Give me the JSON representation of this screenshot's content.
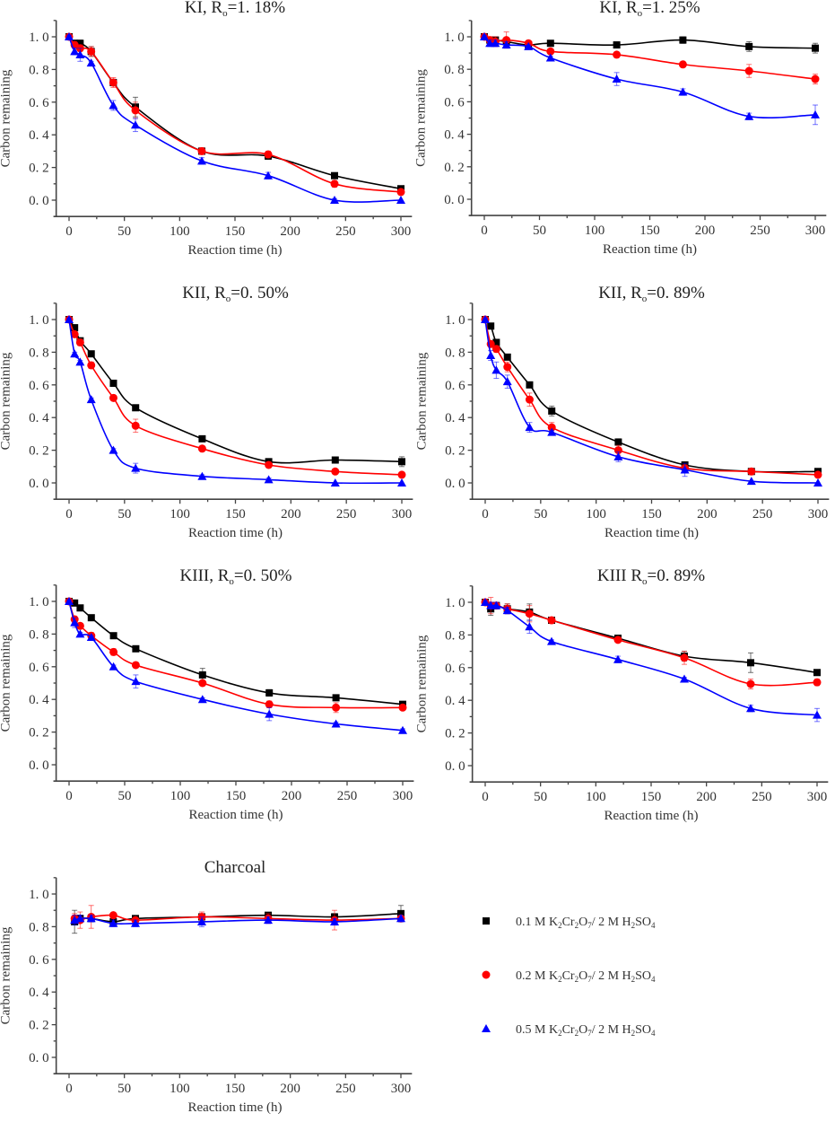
{
  "figure": {
    "legend": {
      "entries": [
        {
          "series": "s1",
          "label": "0.1 M K2Cr2O7/2 M H2SO4",
          "parts": [
            "0.1  M K",
            "2",
            "Cr",
            "2",
            "O",
            "7",
            "/ 2  M H",
            "2",
            "SO",
            "4"
          ],
          "marker": "square",
          "color": "#000000"
        },
        {
          "series": "s2",
          "label": "0.2 M K2Cr2O7/2 M H2SO4",
          "parts": [
            "0.2  M K",
            "2",
            "Cr",
            "2",
            "O",
            "7",
            "/ 2  M H",
            "2",
            "SO",
            "4"
          ],
          "marker": "circle",
          "color": "#ff0000"
        },
        {
          "series": "s3",
          "label": "0.5 M K2Cr2O7/2 M H2SO4",
          "parts": [
            "0.5  M K",
            "2",
            "Cr",
            "2",
            "O",
            "7",
            "/ 2  M H",
            "2",
            "SO",
            "4"
          ],
          "marker": "triangle",
          "color": "#0000ff"
        }
      ]
    }
  },
  "chart_data": [
    {
      "type": "scatter",
      "title": "KI, Ro=1. 18%",
      "title_parts": [
        "KI, R",
        "o",
        "=1. 18%"
      ],
      "xlabel": "Reaction time (h)",
      "ylabel": "Carbon remaining",
      "xlim": [
        -10,
        310
      ],
      "ylim": [
        -0.1,
        1.1
      ],
      "xticks": [
        0,
        50,
        100,
        150,
        200,
        250,
        300
      ],
      "xtick_labels": [
        "0",
        "50",
        "100",
        "150",
        "200",
        "250",
        "300"
      ],
      "yticks": [
        0.0,
        0.2,
        0.4,
        0.6,
        0.8,
        1.0
      ],
      "ytick_labels": [
        "0. 0",
        "0. 2",
        "0. 4",
        "0. 6",
        "0. 8",
        "1. 0"
      ],
      "grid": false,
      "x": [
        0,
        5,
        10,
        20,
        40,
        60,
        120,
        180,
        240,
        300
      ],
      "series": [
        {
          "name": "0.1 M K2Cr2O7/2 M H2SO4",
          "marker": "square",
          "color": "#000000",
          "values": [
            1.0,
            0.96,
            0.96,
            0.91,
            0.72,
            0.57,
            0.3,
            0.27,
            0.15,
            0.07
          ],
          "errors": [
            0.01,
            0.02,
            0.02,
            0.03,
            0.02,
            0.06,
            0.02,
            0.02,
            0.01,
            0.01
          ]
        },
        {
          "name": "0.2 M K2Cr2O7/2 M H2SO4",
          "marker": "circle",
          "color": "#ff0000",
          "values": [
            1.0,
            0.95,
            0.93,
            0.91,
            0.72,
            0.55,
            0.3,
            0.28,
            0.1,
            0.05
          ],
          "errors": [
            0.01,
            0.02,
            0.02,
            0.03,
            0.03,
            0.05,
            0.02,
            0.02,
            0.02,
            0.01
          ]
        },
        {
          "name": "0.5 M K2Cr2O7/2 M H2SO4",
          "marker": "triangle",
          "color": "#0000ff",
          "values": [
            1.0,
            0.91,
            0.89,
            0.84,
            0.58,
            0.46,
            0.24,
            0.15,
            0.0,
            0.0
          ],
          "errors": [
            0.01,
            0.02,
            0.04,
            0.01,
            0.03,
            0.04,
            0.02,
            0.02,
            0.01,
            0.0
          ]
        }
      ]
    },
    {
      "type": "scatter",
      "title": "KI, Ro=1. 25%",
      "title_parts": [
        "KI, R",
        "o",
        "=1. 25%"
      ],
      "xlabel": "Reaction time (h)",
      "ylabel": "Carbon remaining",
      "xlim": [
        -10,
        310
      ],
      "ylim": [
        -0.1,
        1.1
      ],
      "xticks": [
        0,
        50,
        100,
        150,
        200,
        250,
        300
      ],
      "xtick_labels": [
        "0",
        "50",
        "100",
        "150",
        "200",
        "250",
        "300"
      ],
      "yticks": [
        0.0,
        0.2,
        0.4,
        0.6,
        0.8,
        1.0
      ],
      "ytick_labels": [
        "0. 0",
        "0. 2",
        "0. 4",
        "0. 6",
        "0. 8",
        "1. 0"
      ],
      "grid": false,
      "x": [
        0,
        5,
        10,
        20,
        40,
        60,
        120,
        180,
        240,
        300
      ],
      "series": [
        {
          "name": "0.1 M K2Cr2O7/2 M H2SO4",
          "marker": "square",
          "color": "#000000",
          "values": [
            1.0,
            0.98,
            0.98,
            0.97,
            0.95,
            0.96,
            0.95,
            0.98,
            0.94,
            0.93
          ],
          "errors": [
            0.01,
            0.02,
            0.02,
            0.02,
            0.01,
            0.01,
            0.01,
            0.02,
            0.03,
            0.03
          ]
        },
        {
          "name": "0.2 M K2Cr2O7/2 M H2SO4",
          "marker": "circle",
          "color": "#ff0000",
          "values": [
            1.0,
            0.98,
            0.97,
            0.98,
            0.96,
            0.91,
            0.89,
            0.83,
            0.79,
            0.74
          ],
          "errors": [
            0.01,
            0.02,
            0.03,
            0.05,
            0.01,
            0.01,
            0.01,
            0.01,
            0.04,
            0.03
          ]
        },
        {
          "name": "0.5 M K2Cr2O7/2 M H2SO4",
          "marker": "triangle",
          "color": "#0000ff",
          "values": [
            1.0,
            0.96,
            0.96,
            0.95,
            0.94,
            0.87,
            0.74,
            0.66,
            0.51,
            0.52
          ],
          "errors": [
            0.01,
            0.02,
            0.02,
            0.02,
            0.01,
            0.01,
            0.04,
            0.02,
            0.02,
            0.06
          ]
        }
      ]
    },
    {
      "type": "scatter",
      "title": "KII, Ro=0. 50%",
      "title_parts": [
        "KII, R",
        "o",
        "=0. 50%"
      ],
      "xlabel": "Reaction time (h)",
      "ylabel": "Carbon remaining",
      "xlim": [
        -10,
        310
      ],
      "ylim": [
        -0.1,
        1.1
      ],
      "xticks": [
        0,
        50,
        100,
        150,
        200,
        250,
        300
      ],
      "xtick_labels": [
        "0",
        "50",
        "100",
        "150",
        "200",
        "250",
        "300"
      ],
      "yticks": [
        0.0,
        0.2,
        0.4,
        0.6,
        0.8,
        1.0
      ],
      "ytick_labels": [
        "0. 0",
        "0. 2",
        "0. 4",
        "0. 6",
        "0. 8",
        "1. 0"
      ],
      "grid": false,
      "x": [
        0,
        5,
        10,
        20,
        40,
        60,
        120,
        180,
        240,
        300
      ],
      "series": [
        {
          "name": "0.1 M K2Cr2O7/2 M H2SO4",
          "marker": "square",
          "color": "#000000",
          "values": [
            1.0,
            0.95,
            0.87,
            0.79,
            0.61,
            0.46,
            0.27,
            0.13,
            0.14,
            0.13
          ],
          "errors": [
            0.01,
            0.01,
            0.01,
            0.01,
            0.01,
            0.01,
            0.01,
            0.01,
            0.01,
            0.03
          ]
        },
        {
          "name": "0.2 M K2Cr2O7/2 M H2SO4",
          "marker": "circle",
          "color": "#ff0000",
          "values": [
            1.0,
            0.91,
            0.86,
            0.72,
            0.52,
            0.35,
            0.21,
            0.11,
            0.07,
            0.05
          ],
          "errors": [
            0.01,
            0.01,
            0.02,
            0.02,
            0.01,
            0.04,
            0.01,
            0.01,
            0.01,
            0.01
          ]
        },
        {
          "name": "0.5 M K2Cr2O7/2 M H2SO4",
          "marker": "triangle",
          "color": "#0000ff",
          "values": [
            1.0,
            0.79,
            0.74,
            0.51,
            0.2,
            0.09,
            0.04,
            0.02,
            0.0,
            0.0
          ],
          "errors": [
            0.01,
            0.01,
            0.01,
            0.01,
            0.01,
            0.03,
            0.01,
            0.01,
            0.0,
            0.0
          ]
        }
      ]
    },
    {
      "type": "scatter",
      "title": "KII, Ro=0. 89%",
      "title_parts": [
        "KII, R",
        "o",
        "=0. 89%"
      ],
      "xlabel": "Reaction time (h)",
      "ylabel": "Carbon remaining",
      "xlim": [
        -10,
        310
      ],
      "ylim": [
        -0.1,
        1.1
      ],
      "xticks": [
        0,
        50,
        100,
        150,
        200,
        250,
        300
      ],
      "xtick_labels": [
        "0",
        "50",
        "100",
        "150",
        "200",
        "250",
        "300"
      ],
      "yticks": [
        0.0,
        0.2,
        0.4,
        0.6,
        0.8,
        1.0
      ],
      "ytick_labels": [
        "0. 0",
        "0. 2",
        "0. 4",
        "0. 6",
        "0. 8",
        "1. 0"
      ],
      "grid": false,
      "x": [
        0,
        5,
        10,
        20,
        40,
        60,
        120,
        180,
        240,
        300
      ],
      "series": [
        {
          "name": "0.1 M K2Cr2O7/2 M H2SO4",
          "marker": "square",
          "color": "#000000",
          "values": [
            1.0,
            0.96,
            0.86,
            0.77,
            0.6,
            0.44,
            0.25,
            0.11,
            0.07,
            0.07
          ],
          "errors": [
            0.01,
            0.01,
            0.01,
            0.01,
            0.01,
            0.03,
            0.02,
            0.01,
            0.01,
            0.01
          ]
        },
        {
          "name": "0.2 M K2Cr2O7/2 M H2SO4",
          "marker": "circle",
          "color": "#ff0000",
          "values": [
            1.0,
            0.85,
            0.82,
            0.71,
            0.51,
            0.34,
            0.2,
            0.09,
            0.07,
            0.05
          ],
          "errors": [
            0.01,
            0.02,
            0.02,
            0.03,
            0.04,
            0.03,
            0.03,
            0.02,
            0.01,
            0.01
          ]
        },
        {
          "name": "0.5 M K2Cr2O7/2 M H2SO4",
          "marker": "triangle",
          "color": "#0000ff",
          "values": [
            1.0,
            0.78,
            0.69,
            0.62,
            0.34,
            0.31,
            0.16,
            0.08,
            0.01,
            0.0
          ],
          "errors": [
            0.01,
            0.03,
            0.05,
            0.04,
            0.03,
            0.01,
            0.03,
            0.04,
            0.0,
            0.0
          ]
        }
      ]
    },
    {
      "type": "scatter",
      "title": "KIII, Ro=0. 50%",
      "title_parts": [
        "KIII, R",
        "o",
        "=0. 50%"
      ],
      "xlabel": "Reaction time (h)",
      "ylabel": "Carbon remaining",
      "xlim": [
        -10,
        310
      ],
      "ylim": [
        -0.1,
        1.1
      ],
      "xticks": [
        0,
        50,
        100,
        150,
        200,
        250,
        300
      ],
      "xtick_labels": [
        "0",
        "50",
        "100",
        "150",
        "200",
        "250",
        "300"
      ],
      "yticks": [
        0.0,
        0.2,
        0.4,
        0.6,
        0.8,
        1.0
      ],
      "ytick_labels": [
        "0. 0",
        "0. 2",
        "0. 4",
        "0. 6",
        "0. 8",
        "1. 0"
      ],
      "grid": false,
      "x": [
        0,
        5,
        10,
        20,
        40,
        60,
        120,
        180,
        240,
        300
      ],
      "series": [
        {
          "name": "0.1 M K2Cr2O7/2 M H2SO4",
          "marker": "square",
          "color": "#000000",
          "values": [
            1.0,
            0.99,
            0.96,
            0.9,
            0.79,
            0.71,
            0.55,
            0.44,
            0.41,
            0.37
          ],
          "errors": [
            0.01,
            0.01,
            0.01,
            0.01,
            0.01,
            0.01,
            0.04,
            0.02,
            0.01,
            0.01
          ]
        },
        {
          "name": "0.2 M K2Cr2O7/2 M H2SO4",
          "marker": "circle",
          "color": "#ff0000",
          "values": [
            1.0,
            0.89,
            0.85,
            0.79,
            0.69,
            0.61,
            0.5,
            0.37,
            0.35,
            0.35
          ],
          "errors": [
            0.01,
            0.02,
            0.01,
            0.02,
            0.02,
            0.01,
            0.01,
            0.02,
            0.03,
            0.01
          ]
        },
        {
          "name": "0.5 M K2Cr2O7/2 M H2SO4",
          "marker": "triangle",
          "color": "#0000ff",
          "values": [
            1.0,
            0.87,
            0.8,
            0.78,
            0.6,
            0.51,
            0.4,
            0.31,
            0.25,
            0.21
          ],
          "errors": [
            0.01,
            0.03,
            0.01,
            0.01,
            0.01,
            0.04,
            0.01,
            0.04,
            0.01,
            0.01
          ]
        }
      ]
    },
    {
      "type": "scatter",
      "title": "KIII Ro=0. 89%",
      "title_parts": [
        "KIII R",
        "o",
        "=0. 89%"
      ],
      "xlabel": "Reaction time (h)",
      "ylabel": "Carbon remaining",
      "xlim": [
        -10,
        310
      ],
      "ylim": [
        -0.1,
        1.1
      ],
      "xticks": [
        0,
        50,
        100,
        150,
        200,
        250,
        300
      ],
      "xtick_labels": [
        "0",
        "50",
        "100",
        "150",
        "200",
        "250",
        "300"
      ],
      "yticks": [
        0.0,
        0.2,
        0.4,
        0.6,
        0.8,
        1.0
      ],
      "ytick_labels": [
        "0. 0",
        "0. 2",
        "0. 4",
        "0. 6",
        "0. 8",
        "1. 0"
      ],
      "grid": false,
      "x": [
        0,
        5,
        10,
        20,
        40,
        60,
        120,
        180,
        240,
        300
      ],
      "series": [
        {
          "name": "0.1 M K2Cr2O7/2 M H2SO4",
          "marker": "square",
          "color": "#000000",
          "values": [
            1.0,
            0.96,
            0.98,
            0.96,
            0.94,
            0.89,
            0.78,
            0.67,
            0.63,
            0.57
          ],
          "errors": [
            0.01,
            0.04,
            0.02,
            0.03,
            0.05,
            0.01,
            0.01,
            0.03,
            0.06,
            0.01
          ]
        },
        {
          "name": "0.2 M K2Cr2O7/2 M H2SO4",
          "marker": "circle",
          "color": "#ff0000",
          "values": [
            1.0,
            0.98,
            0.98,
            0.96,
            0.93,
            0.89,
            0.77,
            0.66,
            0.5,
            0.51
          ],
          "errors": [
            0.01,
            0.05,
            0.02,
            0.03,
            0.05,
            0.01,
            0.01,
            0.04,
            0.03,
            0.02
          ]
        },
        {
          "name": "0.5 M K2Cr2O7/2 M H2SO4",
          "marker": "triangle",
          "color": "#0000ff",
          "values": [
            1.0,
            0.98,
            0.98,
            0.95,
            0.85,
            0.76,
            0.65,
            0.53,
            0.35,
            0.31
          ],
          "errors": [
            0.01,
            0.02,
            0.02,
            0.02,
            0.04,
            0.01,
            0.02,
            0.01,
            0.02,
            0.04
          ]
        }
      ]
    },
    {
      "type": "scatter",
      "title": "Charcoal",
      "title_parts": [
        "Charcoal",
        "",
        ""
      ],
      "xlabel": "Reaction time (h)",
      "ylabel": "Carbon remaining",
      "xlim": [
        -10,
        310
      ],
      "ylim": [
        -0.1,
        1.1
      ],
      "xticks": [
        0,
        50,
        100,
        150,
        200,
        250,
        300
      ],
      "xtick_labels": [
        "0",
        "50",
        "100",
        "150",
        "200",
        "250",
        "300"
      ],
      "yticks": [
        0.0,
        0.2,
        0.4,
        0.6,
        0.8,
        1.0
      ],
      "ytick_labels": [
        "0. 0",
        "0. 2",
        "0. 4",
        "0. 6",
        "0. 8",
        "1. 0"
      ],
      "grid": false,
      "x": [
        5,
        10,
        20,
        40,
        60,
        120,
        180,
        240,
        300
      ],
      "series": [
        {
          "name": "0.1 M K2Cr2O7/2 M H2SO4",
          "marker": "square",
          "color": "#000000",
          "values": [
            0.83,
            0.85,
            0.85,
            0.83,
            0.85,
            0.86,
            0.87,
            0.86,
            0.88
          ],
          "errors": [
            0.07,
            0.02,
            0.02,
            0.02,
            0.01,
            0.02,
            0.01,
            0.02,
            0.05
          ]
        },
        {
          "name": "0.2 M K2Cr2O7/2 M H2SO4",
          "marker": "circle",
          "color": "#ff0000",
          "values": [
            0.85,
            0.84,
            0.86,
            0.87,
            0.84,
            0.86,
            0.85,
            0.84,
            0.85
          ],
          "errors": [
            0.03,
            0.05,
            0.07,
            0.01,
            0.01,
            0.03,
            0.03,
            0.06,
            0.02
          ]
        },
        {
          "name": "0.5 M K2Cr2O7/2 M H2SO4",
          "marker": "triangle",
          "color": "#0000ff",
          "values": [
            0.84,
            0.85,
            0.85,
            0.82,
            0.82,
            0.83,
            0.84,
            0.83,
            0.85
          ],
          "errors": [
            0.03,
            0.02,
            0.02,
            0.02,
            0.02,
            0.03,
            0.02,
            0.02,
            0.02
          ]
        }
      ]
    }
  ]
}
